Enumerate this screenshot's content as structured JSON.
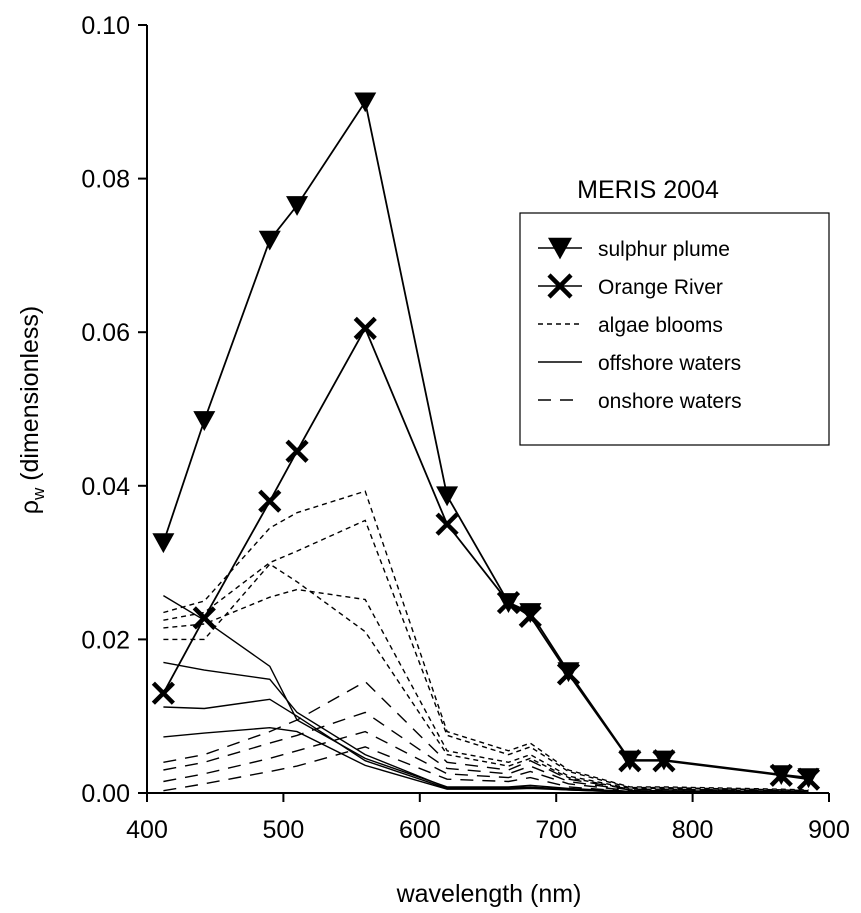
{
  "chart_data": {
    "type": "line",
    "title": "MERIS 2004",
    "xlabel": "wavelength (nm)",
    "ylabel_main": "ρ",
    "ylabel_sub": "w",
    "ylabel_rest": " (dimensionless)",
    "xlim": [
      400,
      900
    ],
    "ylim": [
      0,
      0.1
    ],
    "x_ticks": [
      400,
      500,
      600,
      700,
      800,
      900
    ],
    "x_tick_labels": [
      "400",
      "500",
      "600",
      "700",
      "800",
      "900"
    ],
    "y_ticks": [
      0,
      0.02,
      0.04,
      0.06,
      0.08,
      0.1
    ],
    "y_tick_labels": [
      "0.00",
      "0.02",
      "0.04",
      "0.06",
      "0.08",
      "0.10"
    ],
    "grid": false,
    "legend_position": "right",
    "legend": [
      {
        "label": "sulphur plume",
        "style": "solid",
        "marker": "triangle-down"
      },
      {
        "label": "Orange River",
        "style": "solid",
        "marker": "x"
      },
      {
        "label": "algae blooms",
        "style": "short-dash",
        "marker": "none"
      },
      {
        "label": "offshore waters",
        "style": "solid",
        "marker": "none"
      },
      {
        "label": "onshore waters",
        "style": "long-dash",
        "marker": "none"
      }
    ],
    "x": [
      412,
      442,
      490,
      510,
      560,
      620,
      665,
      681,
      709,
      754,
      779,
      865,
      885
    ],
    "series": [
      {
        "group": "sulphur plume",
        "style": "solid",
        "marker": "triangle-down",
        "values": [
          0.0326,
          0.0485,
          0.072,
          0.0765,
          0.09,
          0.0387,
          0.0248,
          0.0235,
          0.0158,
          0.0043,
          0.0043,
          0.0024,
          0.002
        ]
      },
      {
        "group": "Orange River",
        "style": "solid",
        "marker": "x",
        "values": [
          0.013,
          0.0228,
          0.038,
          0.0445,
          0.0605,
          0.035,
          0.0248,
          0.023,
          0.0155,
          0.0042,
          0.0042,
          0.0023,
          0.0018
        ]
      },
      {
        "group": "algae blooms",
        "style": "short-dash",
        "marker": "none",
        "values": [
          0.0235,
          0.025,
          0.0345,
          0.0365,
          0.0393,
          0.008,
          0.0055,
          0.0065,
          0.003,
          0.0008,
          0.0008,
          0.0005,
          0.0004
        ]
      },
      {
        "group": "algae blooms",
        "style": "short-dash",
        "marker": "none",
        "values": [
          0.0225,
          0.0235,
          0.03,
          0.0315,
          0.0355,
          0.0075,
          0.005,
          0.006,
          0.0028,
          0.0007,
          0.0007,
          0.0004,
          0.0003
        ]
      },
      {
        "group": "algae blooms",
        "style": "short-dash",
        "marker": "none",
        "values": [
          0.0215,
          0.022,
          0.0255,
          0.0265,
          0.0252,
          0.0055,
          0.004,
          0.005,
          0.0022,
          0.0006,
          0.0006,
          0.0004,
          0.0003
        ]
      },
      {
        "group": "algae blooms",
        "style": "short-dash",
        "marker": "none",
        "values": [
          0.02,
          0.02,
          0.0298,
          0.0275,
          0.021,
          0.005,
          0.0035,
          0.0045,
          0.002,
          0.0005,
          0.0005,
          0.0003,
          0.0002
        ]
      },
      {
        "group": "offshore waters",
        "style": "solid",
        "marker": "none",
        "values": [
          0.0257,
          0.0225,
          0.0165,
          0.0095,
          0.0045,
          0.0008,
          0.0008,
          0.001,
          0.0006,
          0.0002,
          0.0002,
          0.0001,
          0.0001
        ]
      },
      {
        "group": "offshore waters",
        "style": "solid",
        "marker": "none",
        "values": [
          0.017,
          0.016,
          0.0148,
          0.0105,
          0.005,
          0.0007,
          0.0007,
          0.0008,
          0.0005,
          0.0002,
          0.0002,
          0.0001,
          0.0001
        ]
      },
      {
        "group": "offshore waters",
        "style": "solid",
        "marker": "none",
        "values": [
          0.0112,
          0.011,
          0.0122,
          0.01,
          0.0042,
          0.0006,
          0.0006,
          0.0007,
          0.0004,
          0.0001,
          0.0001,
          0.0001,
          0.0001
        ]
      },
      {
        "group": "offshore waters",
        "style": "solid",
        "marker": "none",
        "values": [
          0.0073,
          0.0078,
          0.0085,
          0.008,
          0.0036,
          0.0005,
          0.0005,
          0.0006,
          0.0004,
          0.0001,
          0.0001,
          0.0001,
          0.0001
        ]
      },
      {
        "group": "onshore waters",
        "style": "long-dash",
        "marker": "none",
        "values": [
          0.004,
          0.005,
          0.008,
          0.0095,
          0.0145,
          0.004,
          0.003,
          0.0042,
          0.0018,
          0.0005,
          0.0005,
          0.0003,
          0.0002
        ]
      },
      {
        "group": "onshore waters",
        "style": "long-dash",
        "marker": "none",
        "values": [
          0.003,
          0.004,
          0.0065,
          0.0075,
          0.0105,
          0.0032,
          0.0025,
          0.0035,
          0.0015,
          0.0004,
          0.0004,
          0.0002,
          0.0002
        ]
      },
      {
        "group": "onshore waters",
        "style": "long-dash",
        "marker": "none",
        "values": [
          0.0015,
          0.0025,
          0.0045,
          0.0055,
          0.008,
          0.0025,
          0.002,
          0.0028,
          0.0012,
          0.0003,
          0.0003,
          0.0002,
          0.0001
        ]
      },
      {
        "group": "onshore waters",
        "style": "long-dash",
        "marker": "none",
        "values": [
          0.0003,
          0.0012,
          0.0028,
          0.0035,
          0.006,
          0.0018,
          0.0015,
          0.002,
          0.0008,
          0.0002,
          0.0002,
          0.0001,
          0.0001
        ]
      }
    ]
  }
}
